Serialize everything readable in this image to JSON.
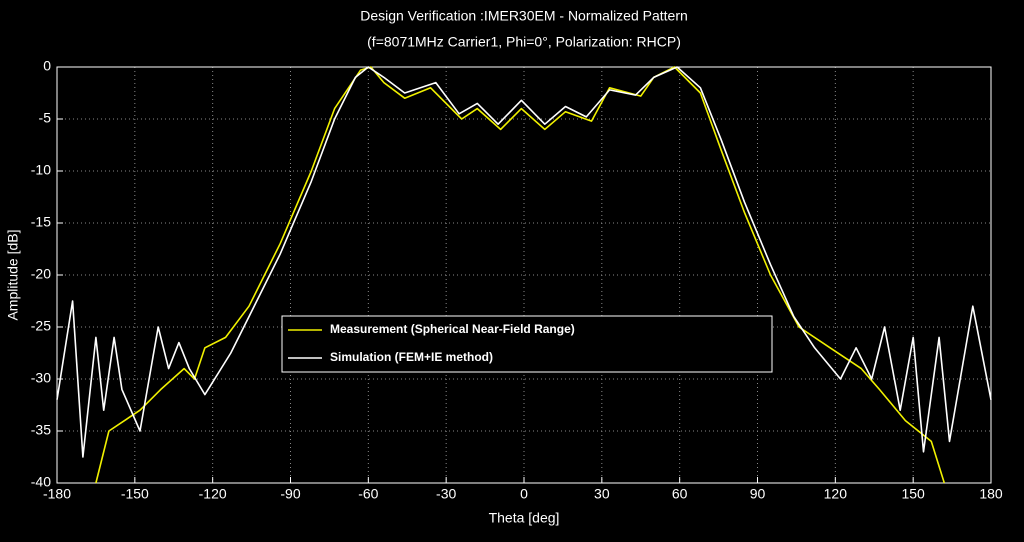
{
  "chart_data": {
    "type": "line",
    "title": "Design Verification :IMER30EM - Normalized Pattern",
    "subtitle": "(f=8071MHz Carrier1, Phi=0°, Polarization: RHCP)",
    "x_label": "Theta [deg]",
    "y_label": "Amplitude [dB]",
    "xlim": [
      -180,
      180
    ],
    "ylim": [
      -40,
      0
    ],
    "xticks": [
      -180,
      -150,
      -120,
      -90,
      -60,
      -30,
      0,
      30,
      60,
      90,
      120,
      150,
      180
    ],
    "yticks": [
      -40,
      -35,
      -30,
      -25,
      -20,
      -15,
      -10,
      -5,
      0
    ],
    "grid": true,
    "legend": "lower center",
    "series": [
      {
        "name": "Measurement (Spherical Near-Field Range)",
        "color": "#f0f000",
        "x": [
          -165,
          -160,
          -148,
          -140,
          -131,
          -127,
          -123,
          -115,
          -106,
          -94,
          -82,
          -73,
          -63,
          -59,
          -54,
          -46,
          -36,
          -24,
          -18,
          -9,
          -1,
          8,
          16,
          26,
          33,
          45,
          50,
          58,
          68,
          76,
          85,
          95,
          106,
          118,
          130,
          137,
          147,
          157,
          162
        ],
        "values": [
          -40,
          -35,
          -33,
          -31,
          -29,
          -30,
          -27,
          -26,
          -23,
          -17,
          -10,
          -4,
          -0.3,
          0,
          -1.5,
          -3,
          -2,
          -5,
          -4,
          -6,
          -4,
          -6,
          -4.3,
          -5.2,
          -2,
          -2.8,
          -1,
          0,
          -2.5,
          -8,
          -14,
          -20,
          -25,
          -27,
          -29,
          -31,
          -34,
          -36,
          -40
        ]
      },
      {
        "name": "Simulation (FEM+IE method)",
        "color": "#ffffff",
        "x": [
          -180,
          -174,
          -170,
          -165,
          -162,
          -158,
          -155,
          -148,
          -141,
          -137,
          -133,
          -129,
          -123,
          -113,
          -106,
          -94,
          -82,
          -73,
          -65,
          -60,
          -54,
          -46,
          -34,
          -25,
          -18,
          -10,
          -1,
          8,
          16,
          24,
          33,
          43,
          50,
          59,
          68,
          76,
          85,
          95,
          104,
          112,
          122,
          128,
          134,
          139,
          145,
          150,
          154,
          160,
          164,
          173,
          180
        ],
        "values": [
          -32,
          -22.5,
          -37.5,
          -26,
          -33,
          -26,
          -31,
          -35,
          -25,
          -29,
          -26.5,
          -29,
          -31.5,
          -27.5,
          -24,
          -18,
          -11,
          -5,
          -1,
          0,
          -1,
          -2.5,
          -1.5,
          -4.5,
          -3.5,
          -5.5,
          -3.2,
          -5.5,
          -3.8,
          -4.8,
          -2.2,
          -2.7,
          -1,
          0,
          -2,
          -7,
          -13,
          -19,
          -24,
          -27,
          -30,
          -27,
          -30,
          -25,
          -33,
          -26,
          -37,
          -26,
          -36,
          -23,
          -32
        ]
      }
    ]
  }
}
